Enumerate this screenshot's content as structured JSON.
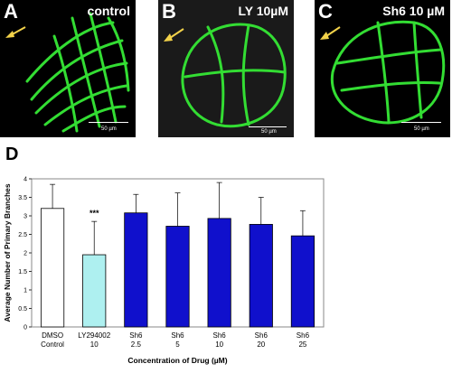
{
  "panels": [
    {
      "letter": "A",
      "label": "control",
      "scale": "50 µm"
    },
    {
      "letter": "B",
      "label": "LY 10µM",
      "scale": "50 µm"
    },
    {
      "letter": "C",
      "label": "Sh6 10 µM",
      "scale": "50 µm"
    }
  ],
  "figure_letter": "D",
  "colors": {
    "fluorescence": "#33dd33",
    "arrow": "#f2d24a",
    "ly_bar": "#aef0f0",
    "sh6_bar": "#1010cc"
  },
  "chart_data": {
    "type": "bar",
    "categories": [
      {
        "line1": "DMSO",
        "line2": "Control"
      },
      {
        "line1": "LY294002",
        "line2": "10"
      },
      {
        "line1": "Sh6",
        "line2": "2.5"
      },
      {
        "line1": "Sh6",
        "line2": "5"
      },
      {
        "line1": "Sh6",
        "line2": "10"
      },
      {
        "line1": "Sh6",
        "line2": "20"
      },
      {
        "line1": "Sh6",
        "line2": "25"
      }
    ],
    "values": [
      3.2,
      1.95,
      3.08,
      2.72,
      2.93,
      2.77,
      2.46
    ],
    "errors": [
      0.65,
      0.9,
      0.5,
      0.9,
      0.97,
      0.73,
      0.68
    ],
    "fills": [
      "#ffffff",
      "#aef0f0",
      "#1010cc",
      "#1010cc",
      "#1010cc",
      "#1010cc",
      "#1010cc"
    ],
    "annotation": "***",
    "ylabel": "Average Number of Primary Branches",
    "xlabel": "Concentration of Drug (µM)",
    "ylim": [
      0,
      4
    ],
    "yticks": [
      "0",
      "0.5",
      "1",
      "1.5",
      "2",
      "2.5",
      "3",
      "3.5",
      "4"
    ]
  }
}
